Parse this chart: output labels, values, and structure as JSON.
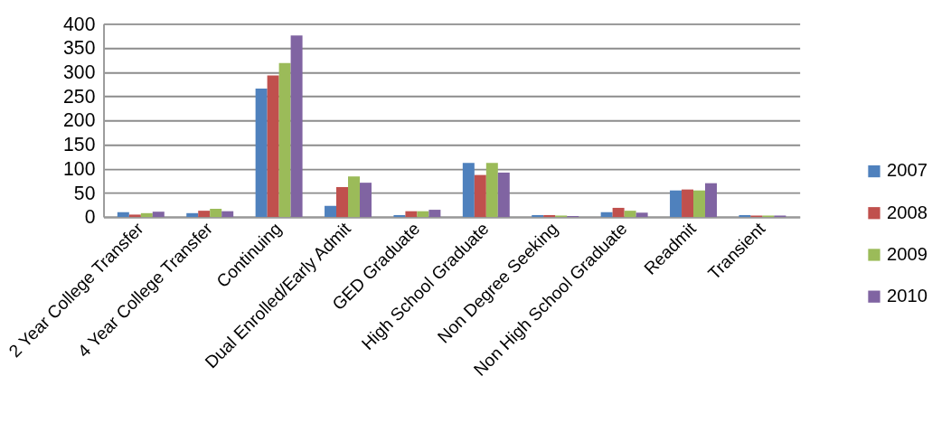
{
  "chart_data": {
    "type": "bar",
    "categories": [
      "2 Year College Transfer",
      "4 Year College Transfer",
      "Continuing",
      "Dual Enrolled/Early Admit",
      "GED Graduate",
      "High School Graduate",
      "Non Degree Seeking",
      "Non High School Graduate",
      "Readmit",
      "Transient"
    ],
    "series": [
      {
        "name": "2007",
        "color": "#4f81bd",
        "values": [
          10,
          8,
          266,
          23,
          4,
          112,
          4,
          10,
          55,
          4
        ]
      },
      {
        "name": "2008",
        "color": "#c0504d",
        "values": [
          5,
          13,
          293,
          62,
          12,
          87,
          4,
          19,
          57,
          3
        ]
      },
      {
        "name": "2009",
        "color": "#9bbb59",
        "values": [
          8,
          17,
          319,
          84,
          12,
          112,
          3,
          13,
          55,
          3
        ]
      },
      {
        "name": "2010",
        "color": "#8064a2",
        "values": [
          11,
          12,
          376,
          71,
          15,
          92,
          2,
          9,
          70,
          3
        ]
      }
    ],
    "ylim": [
      0,
      400
    ],
    "yticks": [
      0,
      50,
      100,
      150,
      200,
      250,
      300,
      350,
      400
    ],
    "grid": "y",
    "legend": "right"
  }
}
